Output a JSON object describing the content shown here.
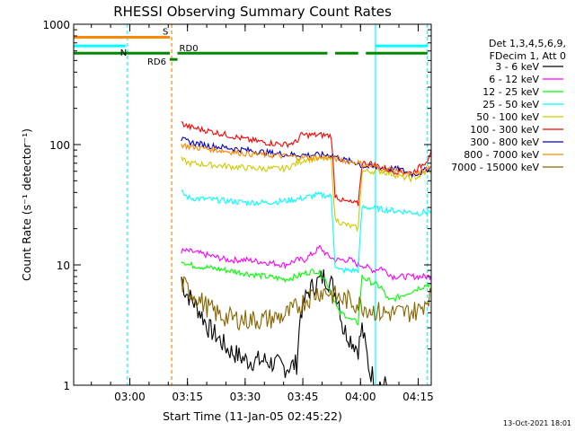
{
  "chart_data": {
    "type": "line",
    "title": "RHESSI Observing Summary Count Rates",
    "xlabel": "Start Time (11-Jan-05 02:45:22)",
    "ylabel": "Count Rate (s⁻¹ detector⁻¹)",
    "yscale": "log",
    "ylim": [
      1,
      1000
    ],
    "xlim_minutes_from_start": [
      0,
      93
    ],
    "x_ticks": [
      {
        "label": "03:00",
        "t": 14.6
      },
      {
        "label": "03:15",
        "t": 29.6
      },
      {
        "label": "03:30",
        "t": 44.6
      },
      {
        "label": "03:45",
        "t": 59.6
      },
      {
        "label": "04:00",
        "t": 74.6
      },
      {
        "label": "04:15",
        "t": 89.6
      }
    ],
    "y_ticks": [
      {
        "label": "1",
        "v": 1
      },
      {
        "label": "10",
        "v": 10
      },
      {
        "label": "100",
        "v": 100
      },
      {
        "label": "1000",
        "v": 1000
      }
    ],
    "legend_header": [
      "Det 1,3,4,5,6,9,",
      "FDecim 1, Att 0"
    ],
    "legend_position": "right",
    "series": [
      {
        "name": "3 - 6 keV",
        "color": "#000000",
        "x": [
          28,
          29,
          31,
          33,
          35,
          37,
          40,
          45,
          50,
          55,
          58,
          59,
          61,
          63,
          65,
          67,
          69,
          70,
          74,
          75,
          76,
          77,
          80,
          82
        ],
        "y": [
          8,
          6,
          5,
          4,
          3,
          2.6,
          2,
          1.6,
          1.6,
          1.4,
          1.5,
          4,
          6,
          7,
          8,
          7,
          5,
          3,
          2,
          3,
          2,
          1.3,
          1,
          1
        ]
      },
      {
        "name": "6 - 12 keV",
        "color": "#ff00ff",
        "x": [
          28,
          30,
          35,
          40,
          45,
          50,
          55,
          58,
          60,
          63,
          64,
          66,
          68,
          70,
          72,
          74,
          75,
          78,
          80,
          83,
          88,
          93
        ],
        "y": [
          13,
          13,
          12,
          11,
          11,
          10.5,
          10,
          11,
          11,
          13,
          14,
          12,
          11,
          11,
          11,
          10,
          10,
          9,
          9.5,
          8,
          8,
          8
        ]
      },
      {
        "name": "12 - 25 keV",
        "color": "#00ff00",
        "x": [
          28,
          30,
          35,
          40,
          45,
          50,
          55,
          58,
          60,
          63,
          65,
          67,
          69,
          71,
          72,
          74,
          75,
          78,
          80,
          82,
          85,
          90,
          93
        ],
        "y": [
          11,
          10,
          9.5,
          9,
          8.5,
          8,
          7.6,
          8,
          8.5,
          9,
          8,
          6,
          4,
          3.8,
          3.5,
          3.3,
          8,
          7,
          6.5,
          5,
          5.5,
          6.5,
          7
        ]
      },
      {
        "name": "25 - 50 keV",
        "color": "#00ffff",
        "x": [
          28,
          30,
          35,
          40,
          45,
          50,
          55,
          60,
          63,
          65,
          67,
          68,
          69,
          72,
          74,
          75,
          77,
          80,
          85,
          90,
          93
        ],
        "y": [
          40,
          36,
          35,
          34,
          33,
          33,
          34,
          36,
          38,
          38,
          37,
          10,
          9,
          9,
          9,
          30,
          30,
          29,
          28,
          27,
          28
        ]
      },
      {
        "name": "50 - 100 keV",
        "color": "#cccc00",
        "x": [
          28,
          30,
          35,
          40,
          45,
          50,
          55,
          60,
          63,
          65,
          67,
          68,
          70,
          72,
          74,
          75,
          78,
          80,
          83,
          85,
          88,
          90,
          93
        ],
        "y": [
          75,
          70,
          68,
          66,
          64,
          63,
          63,
          75,
          76,
          76,
          75,
          24,
          22,
          21,
          20,
          60,
          60,
          60,
          57,
          54,
          52,
          55,
          62
        ]
      },
      {
        "name": "100 - 300 keV",
        "color": "#ff0000",
        "x": [
          28,
          30,
          35,
          40,
          45,
          50,
          55,
          58,
          59,
          63,
          65,
          67,
          68,
          70,
          72,
          74,
          75,
          77,
          80,
          83,
          85,
          88,
          90,
          92,
          93
        ],
        "y": [
          150,
          140,
          130,
          120,
          110,
          104,
          100,
          105,
          120,
          120,
          120,
          118,
          38,
          34,
          33,
          32,
          70,
          70,
          65,
          60,
          60,
          58,
          65,
          75,
          90
        ]
      },
      {
        "name": "300 - 800 keV",
        "color": "#0000cc",
        "x": [
          28,
          30,
          35,
          40,
          45,
          50,
          55,
          60,
          65,
          67,
          70,
          74,
          75,
          80,
          85,
          88,
          90,
          93
        ],
        "y": [
          110,
          105,
          98,
          94,
          90,
          86,
          83,
          82,
          82,
          82,
          75,
          70,
          66,
          64,
          62,
          57,
          58,
          65
        ]
      },
      {
        "name": "800 - 7000 keV",
        "color": "#ff8800",
        "x": [
          28,
          30,
          35,
          40,
          45,
          50,
          55,
          60,
          65,
          67,
          70,
          74,
          75,
          80,
          85,
          88,
          90,
          93
        ],
        "y": [
          100,
          96,
          92,
          88,
          84,
          82,
          80,
          78,
          78,
          78,
          74,
          71,
          68,
          64,
          60,
          55,
          58,
          66
        ]
      },
      {
        "name": "7000 - 15000 keV",
        "color": "#886600",
        "x": [
          28,
          29,
          31,
          33,
          35,
          38,
          41,
          45,
          49,
          52,
          55,
          58,
          60,
          62,
          64,
          66,
          68,
          70,
          72,
          75,
          78,
          80,
          83,
          86,
          90,
          93
        ],
        "y": [
          7,
          6.5,
          5.8,
          5,
          4.4,
          3.8,
          3.6,
          3.5,
          3.5,
          3.6,
          3.8,
          4.4,
          5,
          5.6,
          6,
          6,
          5.5,
          5.2,
          5,
          4.6,
          4.2,
          4,
          4,
          4,
          4.2,
          6
        ]
      }
    ],
    "state_bars": [
      {
        "label": "S",
        "color": "#ff8800",
        "level": 780,
        "segments": [
          [
            0,
            25
          ]
        ]
      },
      {
        "label": "N",
        "color": "#00ffff",
        "level": 660,
        "segments": [
          [
            0,
            13.5
          ],
          [
            78.5,
            92
          ]
        ]
      },
      {
        "label": "RD6",
        "color": "#008800",
        "level": 575,
        "segments": [
          [
            0,
            25
          ]
        ]
      },
      {
        "label": "RD0",
        "color": "#008800",
        "level": 575,
        "segments": [
          [
            27,
            66
          ],
          [
            68,
            74
          ],
          [
            76,
            92
          ]
        ]
      },
      {
        "label": "",
        "color": "#008800",
        "level": 510,
        "segments": [
          [
            25,
            27
          ]
        ]
      }
    ],
    "vlines": [
      {
        "t": 14,
        "color": "#00ffff",
        "style": "dashed"
      },
      {
        "t": 25.5,
        "color": "#ff8800",
        "style": "dashed"
      },
      {
        "t": 78.5,
        "color": "#00ffff",
        "style": "solid"
      },
      {
        "t": 92,
        "color": "#00ffff",
        "style": "dashed"
      }
    ]
  },
  "footer_timestamp": "13-Oct-2021 18:01"
}
